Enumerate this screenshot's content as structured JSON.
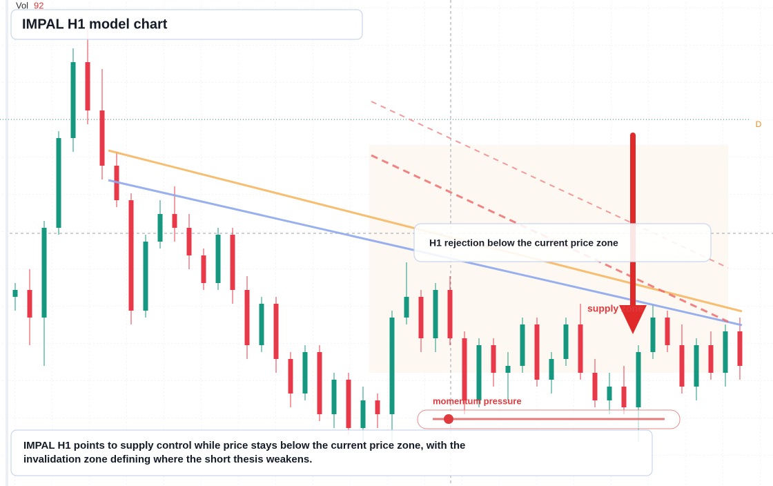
{
  "chart_data": {
    "type": "candlestick",
    "title": "IMPAL H1 model chart",
    "volume_label": "Vol",
    "volume_value": 92,
    "marker": "D",
    "annotations": {
      "rejection": "H1 rejection below the current price zone",
      "supply": "supply zone",
      "momentum": "momentum pressure"
    },
    "caption": "IMPAL H1 points to supply control while price stays below the current price zone, with the invalidation zone defining where the short thesis weakens.",
    "up_color": "#16977f",
    "down_color": "#e8394a",
    "ylim": [
      60,
      130
    ],
    "open": [
      87,
      88,
      84,
      97,
      110,
      121,
      114,
      106,
      101,
      85,
      95,
      99,
      97,
      93,
      89,
      96,
      88,
      80,
      86,
      78,
      73,
      79,
      70,
      75,
      68,
      72,
      70,
      84,
      87,
      81,
      88,
      81,
      72,
      80,
      76,
      77,
      83,
      75,
      78,
      83,
      76,
      72,
      74,
      71,
      79,
      84,
      80,
      74,
      80,
      76,
      82
    ],
    "high": [
      89,
      91,
      98,
      111,
      123,
      126,
      120,
      108,
      102,
      96,
      101,
      103,
      99,
      94,
      97,
      97,
      90,
      87,
      87,
      79,
      80,
      80,
      76,
      76,
      74,
      73,
      85,
      92,
      88,
      89,
      90,
      82,
      81,
      81,
      79,
      84,
      84,
      79,
      84,
      86,
      78,
      76,
      77,
      80,
      86,
      85,
      83,
      81,
      82,
      83,
      84
    ],
    "low": [
      85,
      80,
      77,
      96,
      108,
      112,
      104,
      100,
      83,
      84,
      94,
      95,
      91,
      88,
      88,
      86,
      78,
      79,
      76,
      71,
      72,
      69,
      68,
      67,
      66,
      68,
      66,
      83,
      79,
      79,
      80,
      70,
      71,
      74,
      72,
      76,
      74,
      73,
      77,
      75,
      71,
      70,
      70,
      66,
      78,
      79,
      73,
      72,
      75,
      74,
      75
    ],
    "close": [
      88,
      84,
      97,
      110,
      121,
      114,
      106,
      101,
      85,
      95,
      99,
      97,
      93,
      89,
      96,
      88,
      80,
      86,
      78,
      73,
      79,
      70,
      75,
      68,
      72,
      70,
      84,
      87,
      81,
      88,
      81,
      72,
      80,
      76,
      77,
      83,
      75,
      78,
      83,
      76,
      72,
      74,
      71,
      79,
      84,
      80,
      74,
      80,
      76,
      82,
      77
    ]
  }
}
